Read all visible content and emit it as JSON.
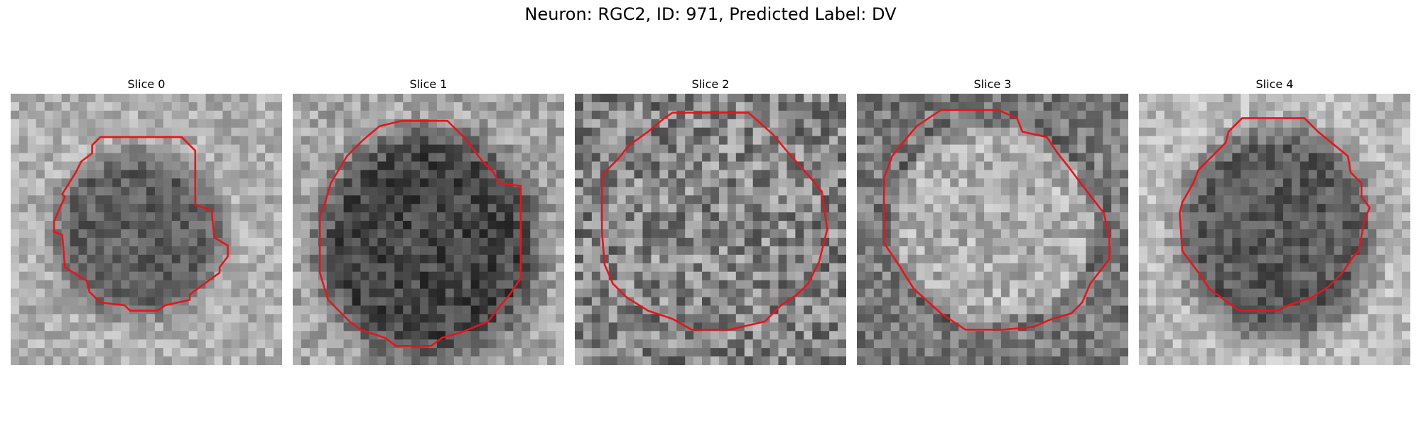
{
  "figure": {
    "title": "Neuron: RGC2, ID: 971, Predicted Label: DV"
  },
  "panels": [
    {
      "title": "Slice 0",
      "image": "grayscale-microscopy-slice",
      "contour_color": "#e8141a"
    },
    {
      "title": "Slice 1",
      "image": "grayscale-microscopy-slice",
      "contour_color": "#e8141a"
    },
    {
      "title": "Slice 2",
      "image": "grayscale-microscopy-slice",
      "contour_color": "#e8141a"
    },
    {
      "title": "Slice 3",
      "image": "grayscale-microscopy-slice",
      "contour_color": "#e8141a"
    },
    {
      "title": "Slice 4",
      "image": "grayscale-microscopy-slice",
      "contour_color": "#e8141a"
    }
  ]
}
